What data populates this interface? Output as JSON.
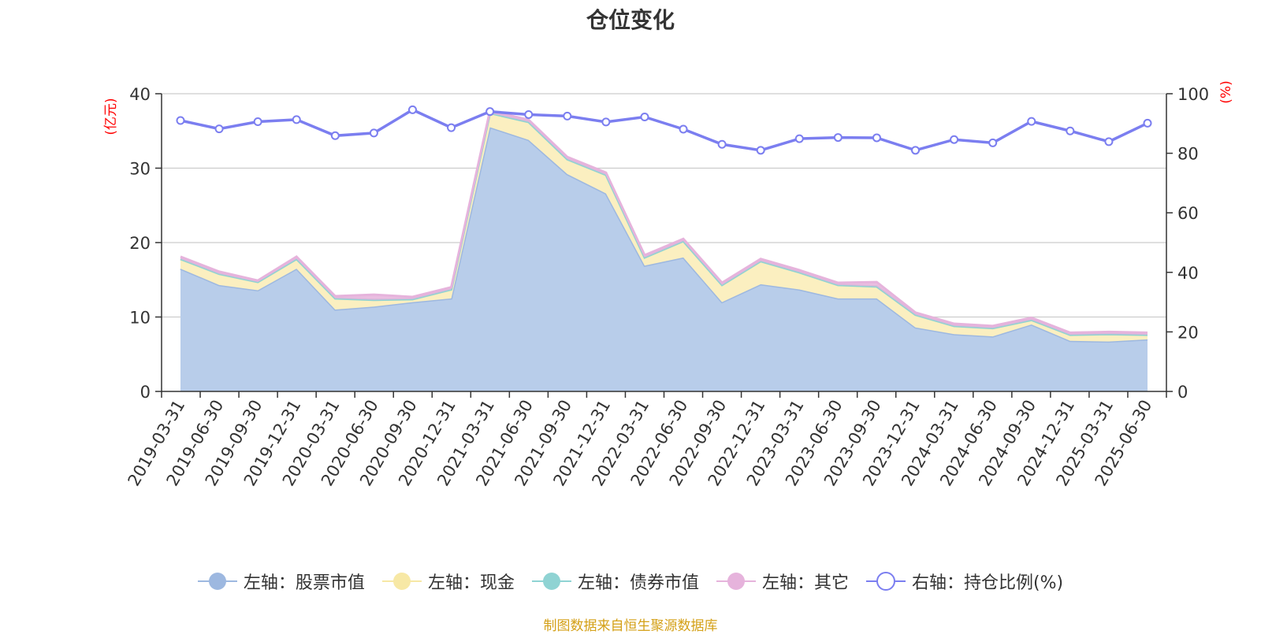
{
  "title": "仓位变化",
  "source_note": "制图数据来自恒生聚源数据库",
  "colors": {
    "stock": "#9db8e0",
    "stock_fill": "#b8cdea",
    "cash": "#f7e8a5",
    "cash_fill": "#fbefc0",
    "bond": "#8fd3d3",
    "other": "#e6b3dc",
    "ratio": "#7b7ef0",
    "grid": "#cccccc",
    "unit": "#ff0000"
  },
  "chart_data": {
    "type": "area",
    "title": "仓位变化",
    "x": [
      "2019-03-31",
      "2019-06-30",
      "2019-09-30",
      "2019-12-31",
      "2020-03-31",
      "2020-06-30",
      "2020-09-30",
      "2020-12-31",
      "2021-03-31",
      "2021-06-30",
      "2021-09-30",
      "2021-12-31",
      "2022-03-31",
      "2022-06-30",
      "2022-09-30",
      "2022-12-31",
      "2023-03-31",
      "2023-06-30",
      "2023-09-30",
      "2023-12-31",
      "2024-03-31",
      "2024-06-30",
      "2024-09-30",
      "2024-12-31",
      "2025-03-31",
      "2025-06-30"
    ],
    "y_left": {
      "unit": "(亿元)",
      "lim": [
        0,
        40
      ],
      "ticks": [
        0,
        10,
        20,
        30,
        40
      ]
    },
    "y_right": {
      "unit": "(%)",
      "lim": [
        0,
        100
      ],
      "ticks": [
        0,
        20,
        40,
        60,
        80,
        100
      ]
    },
    "grid": true,
    "legend_position": "bottom",
    "series": [
      {
        "key": "stock",
        "name": "左轴：股票市值",
        "axis": "left",
        "stacked": true,
        "values": [
          16.5,
          14.3,
          13.6,
          16.5,
          11.0,
          11.4,
          12.0,
          12.5,
          35.5,
          33.8,
          29.2,
          26.6,
          16.9,
          18.0,
          12.0,
          14.4,
          13.7,
          12.5,
          12.5,
          8.6,
          7.7,
          7.4,
          9.0,
          6.8,
          6.7,
          7.0
        ]
      },
      {
        "key": "cash",
        "name": "左轴：现金",
        "axis": "left",
        "stacked": true,
        "values": [
          1.3,
          1.5,
          1.1,
          1.3,
          1.5,
          0.9,
          0.4,
          1.2,
          1.9,
          2.4,
          2.0,
          2.5,
          1.1,
          2.2,
          2.3,
          3.1,
          2.3,
          1.8,
          1.6,
          1.7,
          1.1,
          1.1,
          0.6,
          0.8,
          1.0,
          0.6
        ]
      },
      {
        "key": "bond",
        "name": "左轴：债券市值",
        "axis": "left",
        "stacked": true,
        "values": [
          0,
          0,
          0,
          0,
          0,
          0,
          0,
          0,
          0,
          0,
          0,
          0,
          0,
          0,
          0,
          0,
          0,
          0,
          0,
          0,
          0,
          0,
          0,
          0,
          0,
          0
        ]
      },
      {
        "key": "other",
        "name": "左轴：其它",
        "axis": "left",
        "stacked": true,
        "values": [
          0.3,
          0.3,
          0.2,
          0.3,
          0.3,
          0.7,
          0.3,
          0.3,
          0.3,
          0.3,
          0.3,
          0.3,
          0.3,
          0.3,
          0.3,
          0.3,
          0.3,
          0.3,
          0.6,
          0.3,
          0.3,
          0.3,
          0.3,
          0.3,
          0.3,
          0.3
        ]
      },
      {
        "key": "ratio",
        "name": "右轴：持仓比例(%)",
        "axis": "right",
        "stacked": false,
        "values": [
          91.0,
          88.2,
          90.6,
          91.3,
          85.9,
          86.8,
          94.6,
          88.6,
          94.0,
          93.0,
          92.5,
          90.5,
          92.2,
          88.1,
          83.0,
          81.0,
          84.9,
          85.3,
          85.2,
          81.0,
          84.6,
          83.5,
          90.7,
          87.5,
          83.9,
          90.1
        ]
      }
    ]
  }
}
